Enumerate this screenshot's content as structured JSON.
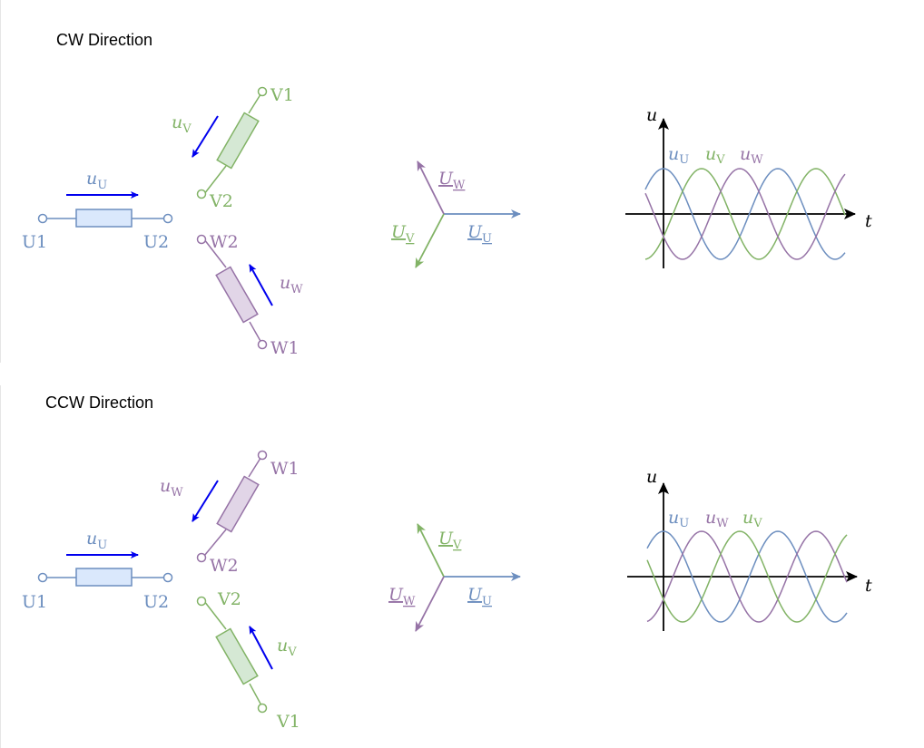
{
  "colors": {
    "u": "#6C8EBF",
    "u_fill": "#DAE8FC",
    "v": "#82B366",
    "v_fill": "#D5E8D4",
    "w": "#9673A6",
    "w_fill": "#E1D5E7",
    "arrow": "#0000EE",
    "axis": "#000000"
  },
  "sections": [
    {
      "title": "CW Direction",
      "terminals": {
        "u1": "U1",
        "u2": "U2",
        "v1": "V1",
        "v2": "V2",
        "w1": "W1",
        "w2": "W2"
      },
      "voltage_labels": {
        "u": "u",
        "u_sub": "U",
        "v": "u",
        "v_sub": "V",
        "w": "u",
        "w_sub": "W"
      },
      "phasors": {
        "u": "U",
        "u_sub": "U",
        "v": "U",
        "v_sub": "V",
        "w": "U",
        "w_sub": "W"
      },
      "chart": {
        "y_axis": "u",
        "x_axis": "t",
        "legend": [
          {
            "base": "u",
            "sub": "U"
          },
          {
            "base": "u",
            "sub": "V"
          },
          {
            "base": "u",
            "sub": "W"
          }
        ]
      }
    },
    {
      "title": "CCW Direction",
      "terminals": {
        "u1": "U1",
        "u2": "U2",
        "v1": "V1",
        "v2": "V2",
        "w1": "W1",
        "w2": "W2"
      },
      "voltage_labels": {
        "u": "u",
        "u_sub": "U",
        "v": "u",
        "v_sub": "V",
        "w": "u",
        "w_sub": "W"
      },
      "phasors": {
        "u": "U",
        "u_sub": "U",
        "v": "U",
        "v_sub": "V",
        "w": "U",
        "w_sub": "W"
      },
      "chart": {
        "y_axis": "u",
        "x_axis": "t",
        "legend": [
          {
            "base": "u",
            "sub": "U"
          },
          {
            "base": "u",
            "sub": "W"
          },
          {
            "base": "u",
            "sub": "V"
          }
        ]
      }
    }
  ]
}
